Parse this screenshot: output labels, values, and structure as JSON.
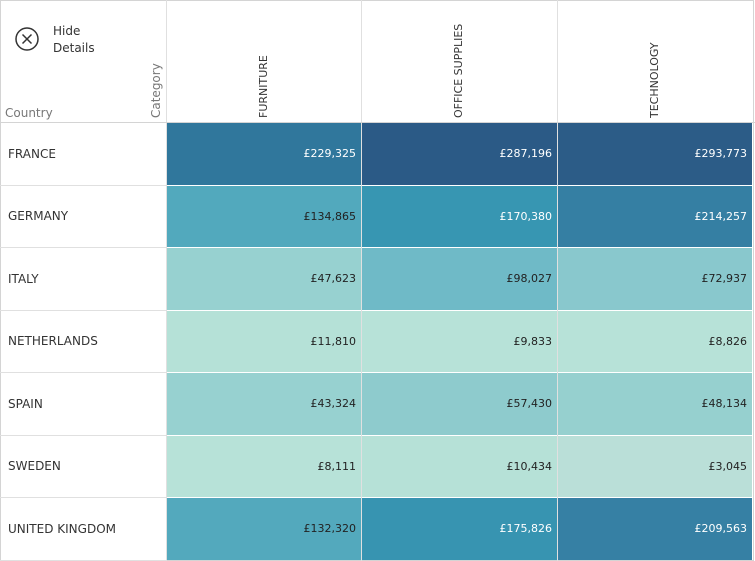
{
  "button": {
    "label_lines": [
      "Hide",
      "Details"
    ]
  },
  "table": {
    "row_header": "Country",
    "column_header": "Category",
    "columns": [
      "FURNITURE",
      "OFFICE SUPPLIES",
      "TECHNOLOGY"
    ],
    "rows": [
      {
        "label": "FRANCE",
        "cells": [
          "£229,325",
          "£287,196",
          "£293,773"
        ],
        "colors": [
          "#30779c",
          "#2b5a86",
          "#2c5c87"
        ]
      },
      {
        "label": "GERMANY",
        "cells": [
          "£134,865",
          "£170,380",
          "£214,257"
        ],
        "colors": [
          "#52a9bd",
          "#3796b2",
          "#357fa3"
        ]
      },
      {
        "label": "ITALY",
        "cells": [
          "£47,623",
          "£98,027",
          "£72,937"
        ],
        "colors": [
          "#97d1d0",
          "#6fbac7",
          "#89c8cd"
        ]
      },
      {
        "label": "NETHERLANDS",
        "cells": [
          "£11,810",
          "£9,833",
          "£8,826"
        ],
        "colors": [
          "#b5e1d7",
          "#b7e2d8",
          "#b7e2d8"
        ]
      },
      {
        "label": "SPAIN",
        "cells": [
          "£43,324",
          "£57,430",
          "£48,134"
        ],
        "colors": [
          "#97d1d0",
          "#8ecbcd",
          "#96d0cf"
        ]
      },
      {
        "label": "SWEDEN",
        "cells": [
          "£8,111",
          "£10,434",
          "£3,045"
        ],
        "colors": [
          "#b7e2d8",
          "#b6e1d7",
          "#badfd8"
        ]
      },
      {
        "label": "UNITED KINGDOM",
        "cells": [
          "£132,320",
          "£175,826",
          "£209,563"
        ],
        "colors": [
          "#53a9bd",
          "#3794b1",
          "#3680a4"
        ]
      }
    ],
    "light_text_cells": [
      [
        0,
        0
      ],
      [
        0,
        1
      ],
      [
        0,
        2
      ],
      [
        1,
        1
      ],
      [
        1,
        2
      ],
      [
        6,
        1
      ],
      [
        6,
        2
      ]
    ]
  }
}
